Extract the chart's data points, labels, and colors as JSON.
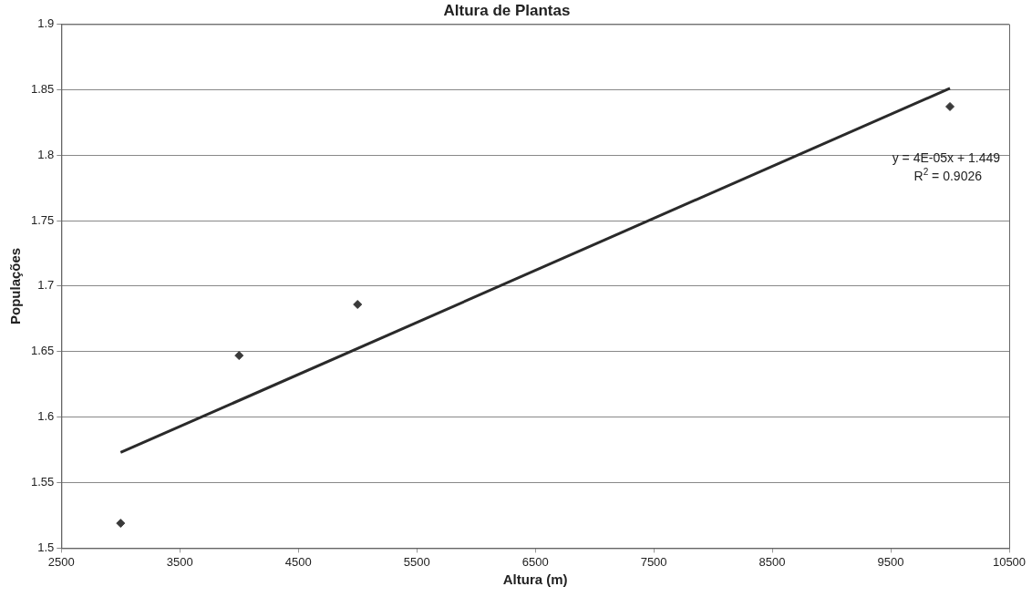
{
  "chart_data": {
    "type": "scatter",
    "title": "Altura de Plantas",
    "xlabel": "Altura (m)",
    "ylabel": "Populações",
    "xlim": [
      2500,
      10500
    ],
    "xticks": [
      2500,
      3500,
      4500,
      5500,
      6500,
      7500,
      8500,
      9500,
      10500
    ],
    "ylim": [
      1.5,
      1.9
    ],
    "yticks": [
      1.5,
      1.55,
      1.6,
      1.65,
      1.7,
      1.75,
      1.8,
      1.85,
      1.9
    ],
    "grid": "y",
    "legend": false,
    "series": [
      {
        "type": "scatter",
        "color": "#3a3a3a",
        "marker": "diamond",
        "x": [
          3000,
          4000,
          5000,
          10000
        ],
        "values": [
          1.519,
          1.647,
          1.686,
          1.837
        ]
      },
      {
        "type": "line",
        "color": "#2a2a2a",
        "marker": "none",
        "line_style": "solid",
        "x": [
          3000,
          10000
        ],
        "values": [
          1.573,
          1.851
        ]
      }
    ],
    "annotations": [
      "y = 4E-05x + 1.449",
      "R$^{2}$ = 0.9026"
    ]
  }
}
